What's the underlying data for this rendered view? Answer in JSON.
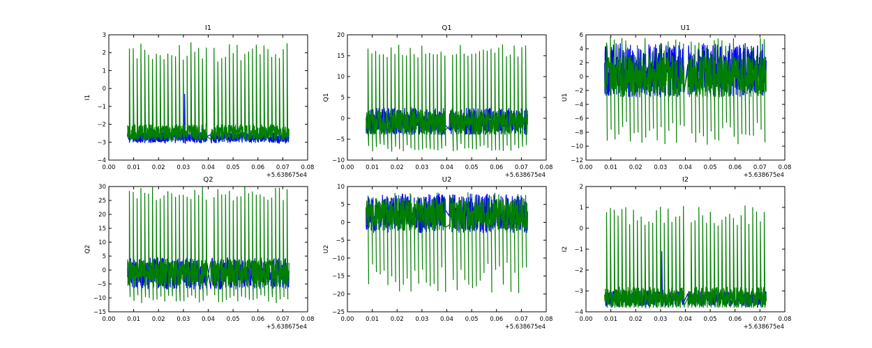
{
  "figure": {
    "offset_label": "+5.638675e4"
  },
  "colors": {
    "series_blue": "#0000ff",
    "series_green": "#007f00",
    "axes": "#000000"
  },
  "chart_data": [
    {
      "type": "line",
      "title": "I1",
      "xlabel": "",
      "ylabel": "I1",
      "xlim": [
        0.0,
        0.08
      ],
      "ylim": [
        -4,
        3
      ],
      "xticks": [
        "0.00",
        "0.01",
        "0.02",
        "0.03",
        "0.04",
        "0.05",
        "0.06",
        "0.07",
        "0.08"
      ],
      "yticks": [
        "−4",
        "−3",
        "−2",
        "−1",
        "0",
        "1",
        "2",
        "3"
      ],
      "x_offset": "+5.638675e4",
      "x_start": 0.0075,
      "x_end": 0.0725,
      "gap": [
        0.0395,
        0.041
      ],
      "series": [
        {
          "name": "blue",
          "base": -2.8,
          "band": [
            -3.05,
            -2.45
          ],
          "spike_high": -0.3,
          "spike_low": -3.05,
          "spike_x": [
            0.0305
          ]
        },
        {
          "name": "green",
          "base": -2.5,
          "band": [
            -2.9,
            -2.0
          ],
          "spike_high": 2.1,
          "spike_low": -2.9,
          "spike_count": 42,
          "spike_max": 2.6,
          "spike_min_top": 1.5
        }
      ]
    },
    {
      "type": "line",
      "title": "Q1",
      "xlabel": "",
      "ylabel": "Q1",
      "xlim": [
        0.0,
        0.08
      ],
      "ylim": [
        -10,
        20
      ],
      "xticks": [
        "0.00",
        "0.01",
        "0.02",
        "0.03",
        "0.04",
        "0.05",
        "0.06",
        "0.07",
        "0.08"
      ],
      "yticks": [
        "−10",
        "−5",
        "0",
        "5",
        "10",
        "15",
        "20"
      ],
      "x_offset": "+5.638675e4",
      "x_start": 0.0075,
      "x_end": 0.0725,
      "gap": [
        0.0395,
        0.041
      ],
      "series": [
        {
          "name": "blue",
          "base": -1.0,
          "band": [
            -4.0,
            2.5
          ]
        },
        {
          "name": "green",
          "base": -1.0,
          "band": [
            -4.0,
            2.0
          ],
          "spike_high": 16.5,
          "spike_low": -8.0,
          "spike_count": 42,
          "spike_max": 17.8,
          "spike_min_top": 14.5
        }
      ]
    },
    {
      "type": "line",
      "title": "U1",
      "xlabel": "",
      "ylabel": "U1",
      "xlim": [
        0.0,
        0.08
      ],
      "ylim": [
        -12,
        6
      ],
      "xticks": [
        "0.00",
        "0.01",
        "0.02",
        "0.03",
        "0.04",
        "0.05",
        "0.06",
        "0.07",
        "0.08"
      ],
      "yticks": [
        "−12",
        "−10",
        "−8",
        "−6",
        "−4",
        "−2",
        "0",
        "2",
        "4",
        "6"
      ],
      "x_offset": "+5.638675e4",
      "x_start": 0.0075,
      "x_end": 0.0725,
      "gap": [
        0.0395,
        0.041
      ],
      "series": [
        {
          "name": "blue",
          "base": 0.5,
          "band": [
            -3.0,
            4.8
          ]
        },
        {
          "name": "green",
          "base": 0.0,
          "band": [
            -3.0,
            3.0
          ],
          "spike_high": 4.5,
          "spike_low": -10.0,
          "spike_count": 42,
          "spike_max": 5.8,
          "spike_min_top": 3.0
        }
      ]
    },
    {
      "type": "line",
      "title": "Q2",
      "xlabel": "",
      "ylabel": "Q2",
      "xlim": [
        0.0,
        0.08
      ],
      "ylim": [
        -15,
        30
      ],
      "xticks": [
        "0.00",
        "0.01",
        "0.02",
        "0.03",
        "0.04",
        "0.05",
        "0.06",
        "0.07",
        "0.08"
      ],
      "yticks": [
        "−15",
        "−10",
        "−5",
        "0",
        "5",
        "10",
        "15",
        "20",
        "25",
        "30"
      ],
      "x_offset": "+5.638675e4",
      "x_start": 0.0075,
      "x_end": 0.0725,
      "gap": [
        0.0395,
        0.041
      ],
      "series": [
        {
          "name": "blue",
          "base": 0.0,
          "band": [
            -7.0,
            4.5
          ]
        },
        {
          "name": "green",
          "base": -1.0,
          "band": [
            -6.0,
            4.0
          ],
          "spike_high": 28.0,
          "spike_low": -12.0,
          "spike_count": 42,
          "spike_max": 30.0,
          "spike_min_top": 25.0
        }
      ]
    },
    {
      "type": "line",
      "title": "U2",
      "xlabel": "",
      "ylabel": "U2",
      "xlim": [
        0.0,
        0.08
      ],
      "ylim": [
        -25,
        10
      ],
      "xticks": [
        "0.00",
        "0.01",
        "0.02",
        "0.03",
        "0.04",
        "0.05",
        "0.06",
        "0.07",
        "0.08"
      ],
      "yticks": [
        "−25",
        "−20",
        "−15",
        "−10",
        "−5",
        "0",
        "5",
        "10"
      ],
      "x_offset": "+5.638675e4",
      "x_start": 0.0075,
      "x_end": 0.0725,
      "gap": [
        0.0395,
        0.041
      ],
      "series": [
        {
          "name": "blue",
          "base": 2.5,
          "band": [
            -3.0,
            8.0
          ]
        },
        {
          "name": "green",
          "base": 1.0,
          "band": [
            -2.5,
            7.0
          ],
          "spike_high": 6.5,
          "spike_low": -20.0,
          "spike_count": 42,
          "spike_max": 8.5,
          "spike_min_top": 5.0
        }
      ]
    },
    {
      "type": "line",
      "title": "I2",
      "xlabel": "",
      "ylabel": "I2",
      "xlim": [
        0.0,
        0.08
      ],
      "ylim": [
        -4,
        2
      ],
      "xticks": [
        "0.00",
        "0.01",
        "0.02",
        "0.03",
        "0.04",
        "0.05",
        "0.06",
        "0.07",
        "0.08"
      ],
      "yticks": [
        "−4",
        "−3",
        "−2",
        "−1",
        "0",
        "1",
        "2"
      ],
      "x_offset": "+5.638675e4",
      "x_start": 0.0075,
      "x_end": 0.0725,
      "gap": [
        0.0395,
        0.041
      ],
      "series": [
        {
          "name": "blue",
          "base": -3.45,
          "band": [
            -3.75,
            -3.0
          ],
          "spike_high": -1.1,
          "spike_low": -3.75,
          "spike_x": [
            0.0305
          ]
        },
        {
          "name": "green",
          "base": -3.3,
          "band": [
            -3.8,
            -2.8
          ],
          "spike_high": 0.3,
          "spike_low": -3.8,
          "spike_count": 42,
          "spike_max": 1.1,
          "spike_min_top": 0.0
        }
      ]
    }
  ]
}
